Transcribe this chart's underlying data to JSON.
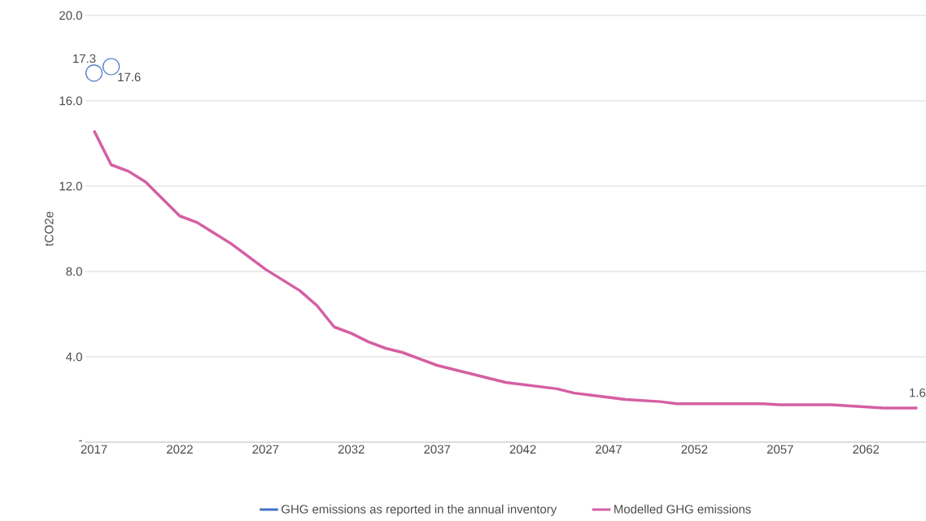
{
  "chart_data": {
    "type": "line",
    "ylabel": "tCO2e",
    "x": [
      2017,
      2018,
      2019,
      2020,
      2021,
      2022,
      2023,
      2024,
      2025,
      2026,
      2027,
      2028,
      2029,
      2030,
      2031,
      2032,
      2033,
      2034,
      2035,
      2036,
      2037,
      2038,
      2039,
      2040,
      2041,
      2042,
      2043,
      2044,
      2045,
      2046,
      2047,
      2048,
      2049,
      2050,
      2051,
      2052,
      2053,
      2054,
      2055,
      2056,
      2057,
      2058,
      2059,
      2060,
      2061,
      2062,
      2063,
      2064,
      2065
    ],
    "series": [
      {
        "name": "GHG emissions as reported in the annual inventory",
        "type": "scatter",
        "color": "#4472c4",
        "marker": "circle",
        "x": [
          2017,
          2018
        ],
        "values": [
          17.3,
          17.6
        ],
        "value_labels": [
          "17.3",
          "17.6"
        ]
      },
      {
        "name": "Modelled GHG emissions",
        "color": "#d55fa3",
        "values": [
          14.6,
          13.0,
          12.7,
          12.2,
          11.4,
          10.6,
          10.3,
          9.8,
          9.3,
          8.7,
          8.1,
          7.6,
          7.1,
          6.4,
          5.4,
          5.1,
          4.7,
          4.4,
          4.2,
          3.9,
          3.6,
          3.4,
          3.2,
          3.0,
          2.8,
          2.7,
          2.6,
          2.5,
          2.3,
          2.2,
          2.1,
          2.0,
          1.95,
          1.9,
          1.8,
          1.8,
          1.8,
          1.8,
          1.8,
          1.8,
          1.75,
          1.75,
          1.75,
          1.75,
          1.7,
          1.65,
          1.6,
          1.6,
          1.6
        ],
        "value_labels": [
          null,
          null,
          null,
          null,
          null,
          null,
          null,
          null,
          null,
          null,
          null,
          null,
          null,
          null,
          null,
          null,
          null,
          null,
          null,
          null,
          null,
          null,
          null,
          null,
          null,
          null,
          null,
          null,
          null,
          null,
          null,
          null,
          null,
          null,
          null,
          null,
          null,
          null,
          null,
          null,
          null,
          null,
          null,
          null,
          null,
          null,
          null,
          null,
          "1.6"
        ]
      }
    ],
    "xlim": [
      2016.5,
      2065.5
    ],
    "xticks": [
      2017,
      2022,
      2027,
      2032,
      2037,
      2042,
      2047,
      2052,
      2057,
      2062
    ],
    "ylim": [
      0,
      20
    ],
    "yticks": [
      {
        "value": 0,
        "label": "-"
      },
      {
        "value": 4,
        "label": "4.0"
      },
      {
        "value": 8,
        "label": "8.0"
      },
      {
        "value": 12,
        "label": "12.0"
      },
      {
        "value": 16,
        "label": "16.0"
      },
      {
        "value": 20,
        "label": "20.0"
      }
    ],
    "grid": "y",
    "legend": "bottom"
  }
}
